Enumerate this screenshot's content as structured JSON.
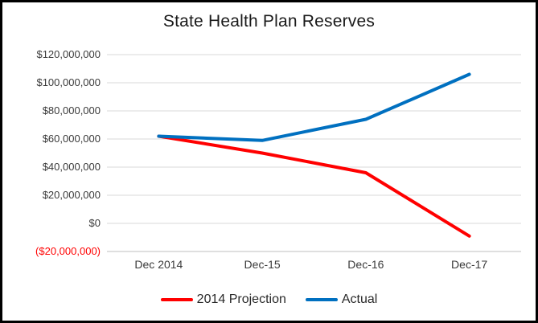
{
  "window": {
    "background_color": "#FFFFFF",
    "border_color": "#000000"
  },
  "chart_data": {
    "type": "line",
    "title": "State Health Plan Reserves",
    "categories": [
      "Dec 2014",
      "Dec-15",
      "Dec-16",
      "Dec-17"
    ],
    "series": [
      {
        "name": "2014 Projection",
        "color": "#FF0000",
        "values": [
          62000000,
          50000000,
          36000000,
          -9000000
        ]
      },
      {
        "name": "Actual",
        "color": "#0070C0",
        "values": [
          62000000,
          59000000,
          74000000,
          106000000
        ]
      }
    ],
    "ylim": [
      -20000000,
      120000000
    ],
    "y_tick_step": 20000000,
    "y_ticks": [
      {
        "value": 120000000,
        "label": "$120,000,000",
        "color": "#3A3A3A"
      },
      {
        "value": 100000000,
        "label": "$100,000,000",
        "color": "#3A3A3A"
      },
      {
        "value": 80000000,
        "label": "$80,000,000",
        "color": "#3A3A3A"
      },
      {
        "value": 60000000,
        "label": "$60,000,000",
        "color": "#3A3A3A"
      },
      {
        "value": 40000000,
        "label": "$40,000,000",
        "color": "#3A3A3A"
      },
      {
        "value": 20000000,
        "label": "$20,000,000",
        "color": "#3A3A3A"
      },
      {
        "value": 0,
        "label": "$0",
        "color": "#3A3A3A"
      },
      {
        "value": -20000000,
        "label": "($20,000,000)",
        "color": "#FF0000"
      }
    ],
    "grid": true,
    "gridline_color": "#D9D9D9",
    "axisline_color": "#BFBFBF",
    "legend_position": "bottom"
  }
}
